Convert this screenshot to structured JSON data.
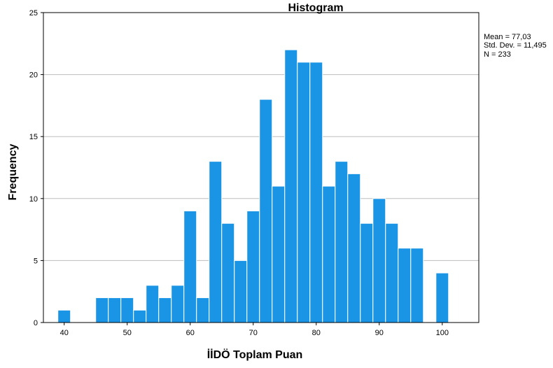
{
  "chart_data": {
    "type": "bar",
    "title": "Histogram",
    "xlabel": "İİDÖ Toplam Puan",
    "ylabel": "Frequency",
    "xlim": [
      36.7,
      105.8
    ],
    "ylim": [
      0,
      25
    ],
    "xticks": [
      "40",
      "50",
      "60",
      "70",
      "80",
      "90",
      "100"
    ],
    "xtick_values": [
      40,
      50,
      60,
      70,
      80,
      90,
      100
    ],
    "yticks": [
      "0",
      "5",
      "10",
      "15",
      "20",
      "25"
    ],
    "ytick_values": [
      0,
      5,
      10,
      15,
      20,
      25
    ],
    "grid": true,
    "bin_start": 39,
    "bin_width": 2,
    "values": [
      1,
      0,
      0,
      2,
      2,
      2,
      1,
      3,
      2,
      3,
      9,
      2,
      13,
      8,
      5,
      9,
      18,
      11,
      22,
      21,
      21,
      11,
      13,
      12,
      8,
      10,
      8,
      6,
      6,
      0,
      4
    ],
    "bar_color": "#1a95e6",
    "stats": {
      "mean": "Mean = 77,03",
      "std": "Std. Dev. = 11,495",
      "n": "N = 233"
    }
  }
}
